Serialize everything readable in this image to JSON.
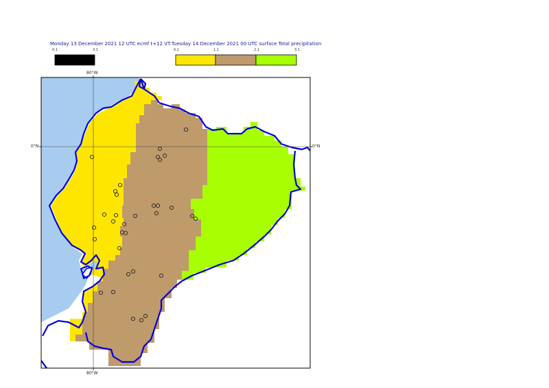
{
  "title": "Monday 13 December 2021 12 UTC ecmf t+12 VT:Tuesday 14 December 2021 00 UTC surface  Total precipitation",
  "legend_left": {
    "labels": [
      "0.1",
      "3.1"
    ],
    "color": "#000000"
  },
  "legend_right": {
    "labels": [
      "0.1",
      "1.1",
      "2.1",
      "3.1"
    ],
    "classes": [
      {
        "range": "0.1-1.1",
        "color": "#ffe600"
      },
      {
        "range": "1.1-2.1",
        "color": "#bf9a6b"
      },
      {
        "range": "2.1-3.1",
        "color": "#a8ff00"
      }
    ]
  },
  "axis_labels": {
    "lon_top": "80°W",
    "lon_bottom": "80°W",
    "lat_left": "0°N",
    "lat_right": "0°N"
  },
  "colors": {
    "ocean": "#a8ccf0",
    "coast": "#0000dd",
    "frame": "#000000"
  }
}
